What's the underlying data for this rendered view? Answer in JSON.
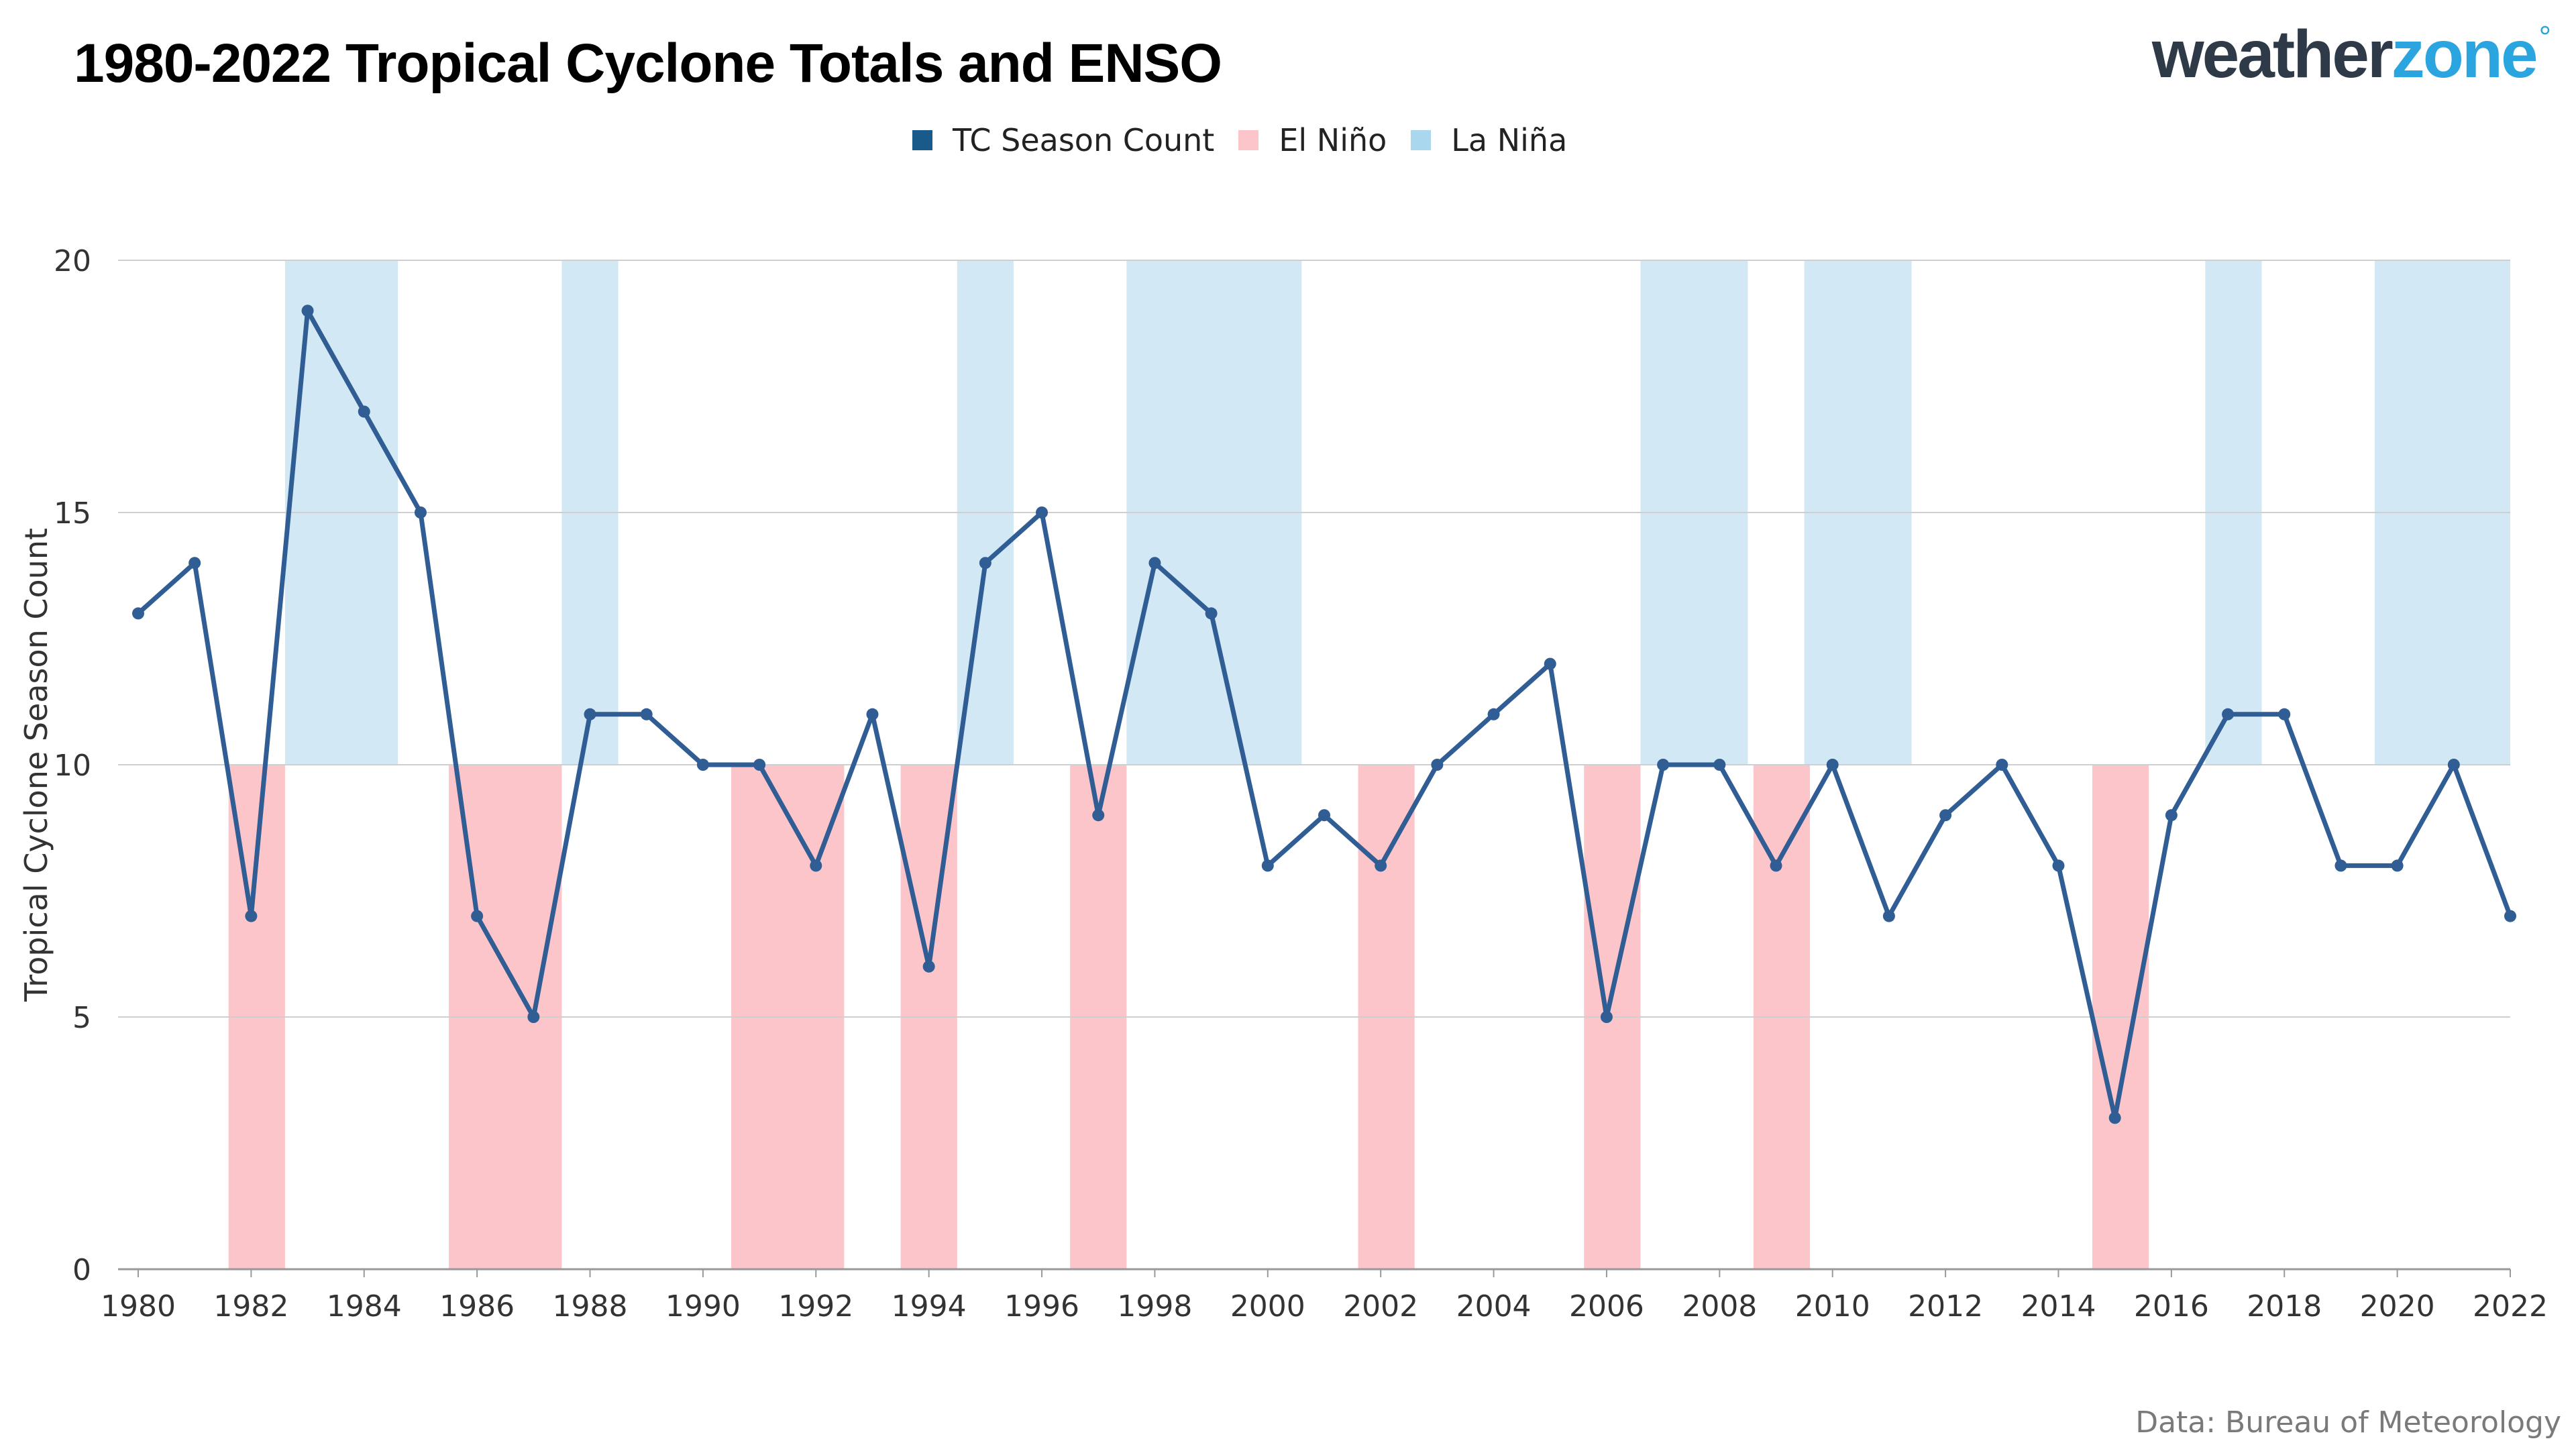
{
  "header": {
    "title": "1980-2022 Tropical Cyclone Totals and ENSO",
    "logo_part1": "weather",
    "logo_part2": "zone",
    "logo_mark": "°"
  },
  "legend": [
    {
      "label": "TC Season Count",
      "color": "#1a5a8a"
    },
    {
      "label": "El Niño",
      "color": "#fcc5ca"
    },
    {
      "label": "La Niña",
      "color": "#a9d8ee"
    }
  ],
  "footer": {
    "source": "Data: Bureau of Meteorology"
  },
  "chart_data": {
    "type": "line",
    "ylabel": "Tropical Cyclone Season Count",
    "xlabel": "",
    "ylim": [
      0,
      20
    ],
    "yticks": [
      0,
      5,
      10,
      15,
      20
    ],
    "xlim": [
      1980,
      2022
    ],
    "xticks": [
      1980,
      1982,
      1984,
      1986,
      1988,
      1990,
      1992,
      1994,
      1996,
      1998,
      2000,
      2002,
      2004,
      2006,
      2008,
      2010,
      2012,
      2014,
      2016,
      2018,
      2020,
      2022
    ],
    "grid": true,
    "legend_position": "top-center",
    "series": [
      {
        "name": "TC Season Count",
        "color": "#2f5d94",
        "x": [
          1980,
          1981,
          1982,
          1983,
          1984,
          1985,
          1986,
          1987,
          1988,
          1989,
          1990,
          1991,
          1992,
          1993,
          1994,
          1995,
          1996,
          1997,
          1998,
          1999,
          2000,
          2001,
          2002,
          2003,
          2004,
          2005,
          2006,
          2007,
          2008,
          2009,
          2010,
          2011,
          2012,
          2013,
          2014,
          2015,
          2016,
          2017,
          2018,
          2019,
          2020,
          2021,
          2022
        ],
        "values": [
          13,
          14,
          7,
          19,
          17,
          15,
          7,
          5,
          11,
          11,
          10,
          10,
          8,
          11,
          6,
          14,
          15,
          9,
          14,
          13,
          8,
          9,
          8,
          10,
          11,
          12,
          5,
          10,
          10,
          8,
          10,
          7,
          9,
          10,
          8,
          3,
          9,
          11,
          11,
          8,
          8,
          10,
          7
        ]
      }
    ],
    "el_nino_periods": [
      [
        1981.6,
        1982.6
      ],
      [
        1985.5,
        1987.5
      ],
      [
        1990.5,
        1992.5
      ],
      [
        1993.5,
        1994.5
      ],
      [
        1996.5,
        1997.5
      ],
      [
        2001.6,
        2002.6
      ],
      [
        2005.6,
        2006.6
      ],
      [
        2008.6,
        2009.6
      ],
      [
        2014.6,
        2015.6
      ]
    ],
    "la_nina_periods": [
      [
        1982.6,
        1984.6
      ],
      [
        1987.5,
        1988.5
      ],
      [
        1994.5,
        1995.5
      ],
      [
        1997.5,
        2000.6
      ],
      [
        2006.6,
        2008.5
      ],
      [
        2009.5,
        2011.4
      ],
      [
        2016.6,
        2017.6
      ],
      [
        2019.6,
        2022.6
      ]
    ],
    "el_nino_color": "#fcc5ca",
    "la_nina_color": "#d2e8f5"
  }
}
